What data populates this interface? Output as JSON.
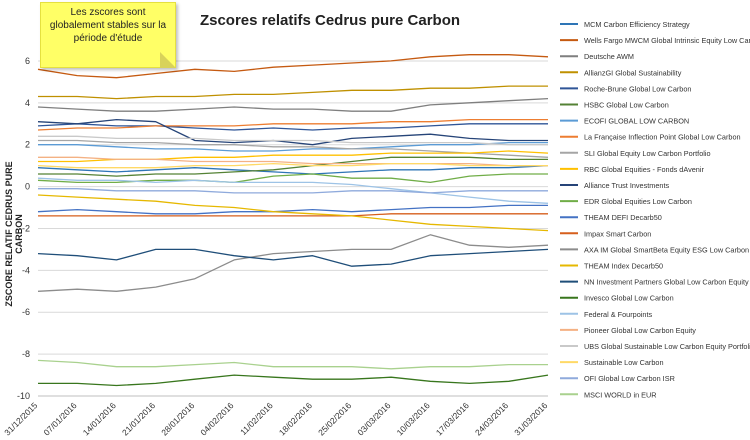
{
  "chart_data": {
    "type": "line",
    "title": "Zscores relatifs Cedrus pure Carbon",
    "xlabel": "",
    "ylabel": "ZSCORE RELATIF CEDRUS PURE CARBON",
    "ylim": [
      -10,
      7
    ],
    "yticks": [
      -10,
      -8,
      -6,
      -4,
      -2,
      0,
      2,
      4,
      6
    ],
    "x_tick_labels": [
      "31/12/2015",
      "07/01/2016",
      "14/01/2016",
      "21/01/2016",
      "28/01/2016",
      "04/02/2016",
      "11/02/2016",
      "18/02/2016",
      "25/02/2016",
      "03/03/2016",
      "10/03/2016",
      "17/03/2016",
      "24/03/2016",
      "31/03/2016"
    ],
    "grid": true,
    "legend_position": "right",
    "annotation": "Les zscores sont globalement stables sur la période d'étude",
    "series": [
      {
        "name": "MCM Carbon Efficiency Strategy",
        "color": "#2e75b6",
        "values": [
          0.9,
          0.8,
          0.7,
          0.8,
          0.9,
          0.8,
          0.7,
          0.6,
          0.7,
          0.8,
          0.8,
          0.9,
          0.9,
          1.0
        ]
      },
      {
        "name": "Wells Fargo MWCM Global Intrinsic Equity Low Carbon",
        "color": "#c55a11",
        "values": [
          5.6,
          5.3,
          5.2,
          5.4,
          5.6,
          5.5,
          5.7,
          5.8,
          5.9,
          6.0,
          6.2,
          6.3,
          6.3,
          6.2
        ]
      },
      {
        "name": "Deutsche AWM",
        "color": "#7f7f7f",
        "values": [
          3.8,
          3.7,
          3.6,
          3.6,
          3.7,
          3.8,
          3.7,
          3.7,
          3.6,
          3.6,
          3.9,
          4.0,
          4.1,
          4.2
        ]
      },
      {
        "name": "AllianzGI Global Sustainability",
        "color": "#bf9000",
        "values": [
          4.3,
          4.3,
          4.2,
          4.3,
          4.3,
          4.4,
          4.4,
          4.5,
          4.6,
          4.6,
          4.7,
          4.7,
          4.8,
          4.8
        ]
      },
      {
        "name": "Roche-Brune Global Low Carbon",
        "color": "#2f5597",
        "values": [
          2.9,
          3.0,
          2.9,
          2.9,
          2.8,
          2.7,
          2.8,
          2.7,
          2.8,
          2.8,
          2.9,
          3.0,
          3.0,
          3.0
        ]
      },
      {
        "name": "HSBC Global Low Carbon",
        "color": "#548235",
        "values": [
          0.6,
          0.6,
          0.5,
          0.6,
          0.6,
          0.7,
          0.8,
          1.0,
          1.2,
          1.4,
          1.4,
          1.4,
          1.3,
          1.3
        ]
      },
      {
        "name": "ECOFI GLOBAL LOW CARBON",
        "color": "#5b9bd5",
        "values": [
          2.0,
          2.0,
          1.9,
          1.8,
          1.8,
          1.7,
          1.7,
          1.8,
          1.8,
          1.9,
          2.0,
          2.0,
          2.1,
          2.1
        ]
      },
      {
        "name": "La Française Inflection Point Global Low Carbon",
        "color": "#ed7d31",
        "values": [
          2.7,
          2.8,
          2.8,
          2.9,
          2.9,
          2.9,
          3.0,
          3.0,
          3.0,
          3.1,
          3.1,
          3.2,
          3.2,
          3.2
        ]
      },
      {
        "name": "SLI Global Equity Low Carbon Portfolio",
        "color": "#a5a5a5",
        "values": [
          2.2,
          2.2,
          2.1,
          2.1,
          2.0,
          2.0,
          1.9,
          1.9,
          1.8,
          1.8,
          1.7,
          1.6,
          1.5,
          1.4
        ]
      },
      {
        "name": "RBC Global Equities - Fonds dAvenir",
        "color": "#ffc000",
        "values": [
          1.2,
          1.2,
          1.3,
          1.3,
          1.4,
          1.4,
          1.5,
          1.5,
          1.5,
          1.6,
          1.6,
          1.6,
          1.7,
          1.6
        ]
      },
      {
        "name": "Alliance Trust Investments",
        "color": "#264478",
        "values": [
          3.1,
          3.0,
          3.2,
          3.1,
          2.2,
          2.1,
          2.2,
          2.0,
          2.3,
          2.4,
          2.5,
          2.3,
          2.2,
          2.2
        ]
      },
      {
        "name": "EDR Global Equities Low Carbon",
        "color": "#70ad47",
        "values": [
          0.3,
          0.2,
          0.2,
          0.3,
          0.3,
          0.2,
          0.5,
          0.6,
          0.4,
          0.4,
          0.2,
          0.5,
          0.6,
          0.6
        ]
      },
      {
        "name": "THEAM DEFI Decarb50",
        "color": "#4472c4",
        "values": [
          -1.2,
          -1.1,
          -1.2,
          -1.3,
          -1.3,
          -1.2,
          -1.2,
          -1.1,
          -1.2,
          -1.1,
          -1.0,
          -1.0,
          -0.9,
          -0.9
        ]
      },
      {
        "name": "Impax Smart Carbon",
        "color": "#d65f1c",
        "values": [
          -1.4,
          -1.4,
          -1.4,
          -1.4,
          -1.4,
          -1.4,
          -1.4,
          -1.4,
          -1.4,
          -1.3,
          -1.3,
          -1.3,
          -1.3,
          -1.3
        ]
      },
      {
        "name": "AXA IM Global SmartBeta Equity ESG Low Carbon",
        "color": "#8c8c8c",
        "values": [
          -5.0,
          -4.9,
          -5.0,
          -4.8,
          -4.4,
          -3.5,
          -3.2,
          -3.1,
          -3.0,
          -3.0,
          -2.3,
          -2.8,
          -2.9,
          -2.8
        ]
      },
      {
        "name": "THEAM Index Decarb50",
        "color": "#e6b800",
        "values": [
          -0.4,
          -0.5,
          -0.6,
          -0.7,
          -0.9,
          -1.0,
          -1.2,
          -1.3,
          -1.4,
          -1.6,
          -1.8,
          -1.9,
          -2.0,
          -2.1
        ]
      },
      {
        "name": "NN Investment Partners Global Low Carbon Equity",
        "color": "#1f4e79",
        "values": [
          -3.2,
          -3.3,
          -3.5,
          -3.0,
          -3.0,
          -3.3,
          -3.5,
          -3.3,
          -3.8,
          -3.7,
          -3.3,
          -3.2,
          -3.1,
          -3.0
        ]
      },
      {
        "name": "Invesco Global Low Carbon",
        "color": "#38761d",
        "values": [
          -9.4,
          -9.4,
          -9.5,
          -9.4,
          -9.2,
          -9.0,
          -9.1,
          -9.2,
          -9.2,
          -9.1,
          -9.3,
          -9.4,
          -9.3,
          -9.0
        ]
      },
      {
        "name": "Federal & Fourpoints",
        "color": "#9dc3e6",
        "values": [
          0.4,
          0.3,
          0.3,
          0.2,
          0.3,
          0.2,
          0.2,
          0.2,
          0.1,
          -0.1,
          -0.3,
          -0.5,
          -0.7,
          -0.8
        ]
      },
      {
        "name": "Pioneer Global Low Carbon Equity",
        "color": "#f4b183",
        "values": [
          1.4,
          1.4,
          1.3,
          1.3,
          1.2,
          1.2,
          1.2,
          1.1,
          1.1,
          1.1,
          1.1,
          1.1,
          1.0,
          1.0
        ]
      },
      {
        "name": "UBS Global Sustainable Low Carbon Equity Portfolio",
        "color": "#c9c9c9",
        "values": [
          2.4,
          2.4,
          2.3,
          2.3,
          2.3,
          2.2,
          2.2,
          2.2,
          2.1,
          2.1,
          2.1,
          2.1,
          2.0,
          2.0
        ]
      },
      {
        "name": "Sustainable Low Carbon",
        "color": "#ffd966",
        "values": [
          1.0,
          0.9,
          0.9,
          0.9,
          1.0,
          1.0,
          1.1,
          1.0,
          1.0,
          1.1,
          1.1,
          1.0,
          1.0,
          1.0
        ]
      },
      {
        "name": "OFI Global Low Carbon ISR",
        "color": "#8faadc",
        "values": [
          -0.1,
          -0.1,
          -0.2,
          -0.2,
          -0.2,
          -0.3,
          -0.3,
          -0.3,
          -0.2,
          -0.2,
          -0.3,
          -0.2,
          -0.2,
          -0.2
        ]
      },
      {
        "name": "MSCI WORLD in EUR",
        "color": "#a9d18e",
        "values": [
          -8.3,
          -8.4,
          -8.6,
          -8.6,
          -8.5,
          -8.4,
          -8.6,
          -8.6,
          -8.6,
          -8.7,
          -8.6,
          -8.6,
          -8.5,
          -8.5
        ]
      }
    ]
  }
}
